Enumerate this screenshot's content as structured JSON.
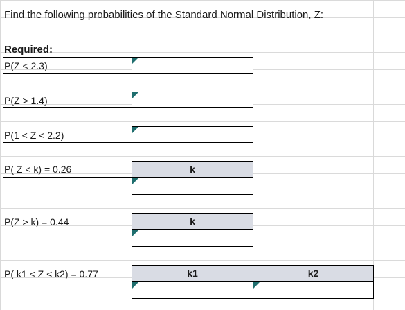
{
  "title": "Find the following probabilities of the Standard Normal Distribution, Z:",
  "required_label": "Required:",
  "rows": [
    {
      "label": "P(Z < 2.3)"
    },
    {
      "label": "P(Z > 1.4)"
    },
    {
      "label": "P(1 < Z < 2.2)"
    },
    {
      "label": "P( Z < k) = 0.26",
      "header": "k"
    },
    {
      "label": "P(Z > k) = 0.44",
      "header": "k"
    },
    {
      "label": "P( k1 < Z < k2) = 0.77",
      "header1": "k1",
      "header2": "k2"
    }
  ],
  "colors": {
    "header_fill": "#d9dce4",
    "comment_marker": "#1f6e6e",
    "gridline": "#d9d9d9"
  }
}
